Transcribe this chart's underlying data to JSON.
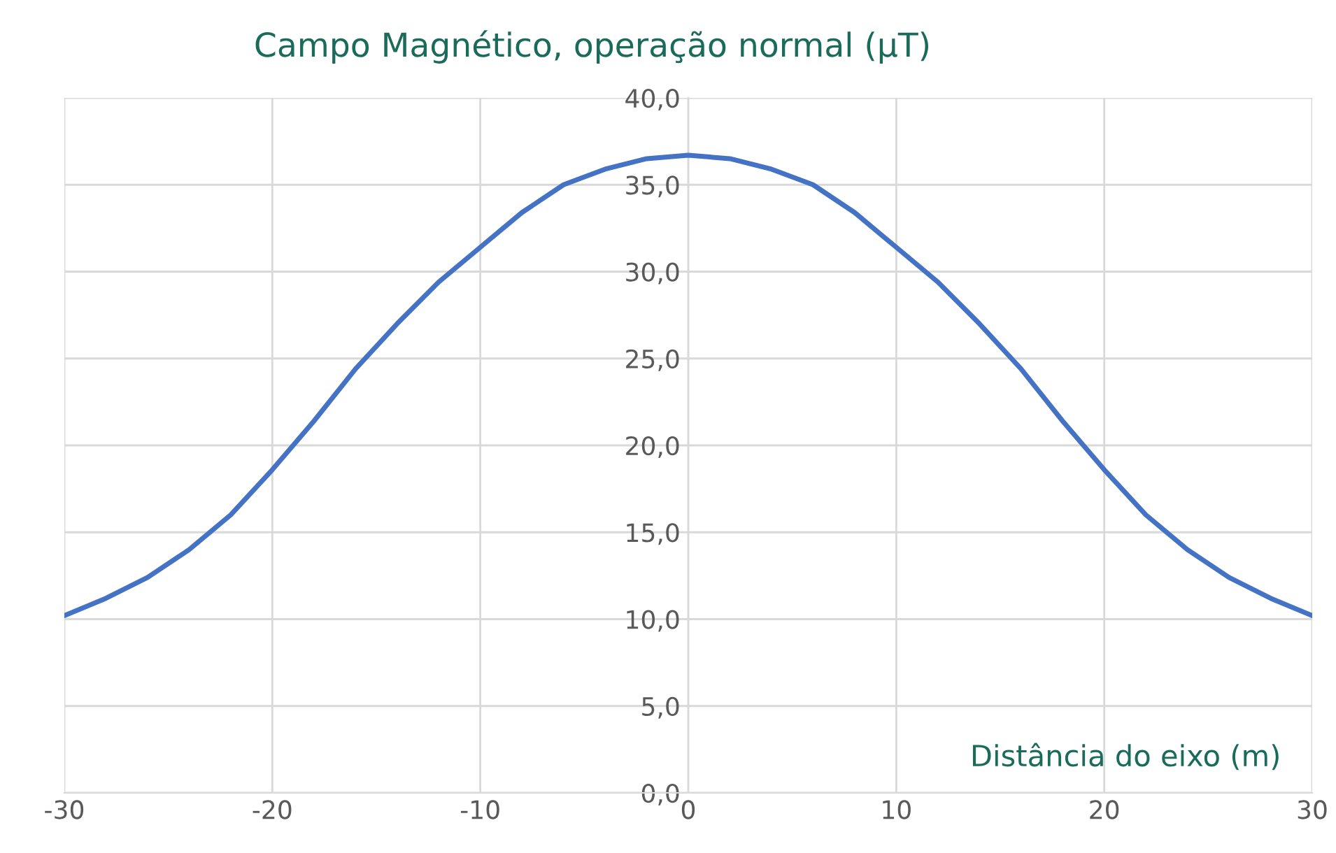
{
  "chart_data": {
    "type": "line",
    "title": "Campo Magnético, operação normal (μT)",
    "xlabel": "Distância do eixo (m)",
    "x": [
      -30,
      -28,
      -26,
      -24,
      -22,
      -20,
      -18,
      -16,
      -14,
      -12,
      -10,
      -8,
      -6,
      -4,
      -2,
      0,
      2,
      4,
      6,
      8,
      10,
      12,
      14,
      16,
      18,
      20,
      22,
      24,
      26,
      28,
      30
    ],
    "series": [
      {
        "color": "#4472c4",
        "values": [
          10.2,
          11.2,
          12.4,
          14.0,
          16.0,
          18.6,
          21.4,
          24.4,
          27.0,
          29.4,
          31.4,
          33.4,
          35.0,
          35.9,
          36.5,
          36.7,
          36.5,
          35.9,
          35.0,
          33.4,
          31.4,
          29.4,
          27.0,
          24.4,
          21.4,
          18.6,
          16.0,
          14.0,
          12.4,
          11.2,
          10.2
        ]
      }
    ],
    "xlim": [
      -30,
      30
    ],
    "xticks": [
      -30,
      -20,
      -10,
      0,
      10,
      20,
      30
    ],
    "ylim": [
      0,
      40
    ],
    "yticks": [
      {
        "value": 0,
        "label": "0,0"
      },
      {
        "value": 5,
        "label": "5,0"
      },
      {
        "value": 10,
        "label": "10,0"
      },
      {
        "value": 15,
        "label": "15,0"
      },
      {
        "value": 20,
        "label": "20,0"
      },
      {
        "value": 25,
        "label": "25,0"
      },
      {
        "value": 30,
        "label": "30,0"
      },
      {
        "value": 35,
        "label": "35,0"
      },
      {
        "value": 40,
        "label": "40,0"
      }
    ],
    "grid": true,
    "marker": "none",
    "line_style": "solid",
    "legend": false
  }
}
